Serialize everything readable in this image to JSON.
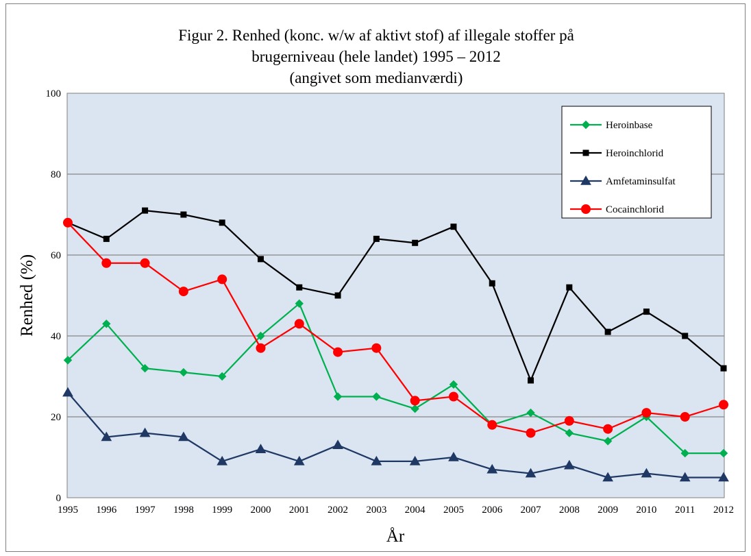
{
  "chart_data": {
    "type": "line",
    "title_lines": [
      "Figur 2. Renhed (konc. w/w af aktivt stof) af illegale stoffer på",
      "brugerniveau (hele landet) 1995 – 2012",
      "(angivet som medianværdi)"
    ],
    "xlabel": "År",
    "ylabel": "Renhed (%)",
    "ylim": [
      0,
      100
    ],
    "yticks": [
      "0",
      "20",
      "40",
      "60",
      "80",
      "100"
    ],
    "ytick_values": [
      0,
      20,
      40,
      60,
      80,
      100
    ],
    "categories": [
      "1995",
      "1996",
      "1997",
      "1998",
      "1999",
      "2000",
      "2001",
      "2002",
      "2003",
      "2004",
      "2005",
      "2006",
      "2007",
      "2008",
      "2009",
      "2010",
      "2011",
      "2012"
    ],
    "grid": true,
    "legend_position": "top-right",
    "plot_background": "#dbe5f1",
    "series": [
      {
        "name": "Heroinbase",
        "color": "#00b050",
        "marker": "diamond",
        "values": [
          34,
          43,
          32,
          31,
          30,
          40,
          48,
          25,
          25,
          22,
          28,
          18,
          21,
          16,
          14,
          20,
          11,
          11
        ]
      },
      {
        "name": "Heroinchlorid",
        "color": "#000000",
        "marker": "square",
        "values": [
          68,
          64,
          71,
          70,
          68,
          59,
          52,
          50,
          64,
          63,
          67,
          53,
          29,
          52,
          41,
          46,
          40,
          32
        ]
      },
      {
        "name": "Amfetaminsulfat",
        "color": "#1f3864",
        "marker": "triangle",
        "values": [
          26,
          15,
          16,
          15,
          9,
          12,
          9,
          13,
          9,
          9,
          10,
          7,
          6,
          8,
          5,
          6,
          5,
          5
        ]
      },
      {
        "name": "Cocainchlorid",
        "color": "#ff0000",
        "marker": "circle",
        "values": [
          68,
          58,
          58,
          51,
          54,
          37,
          43,
          36,
          37,
          24,
          25,
          18,
          16,
          19,
          17,
          21,
          20,
          23
        ]
      }
    ]
  }
}
